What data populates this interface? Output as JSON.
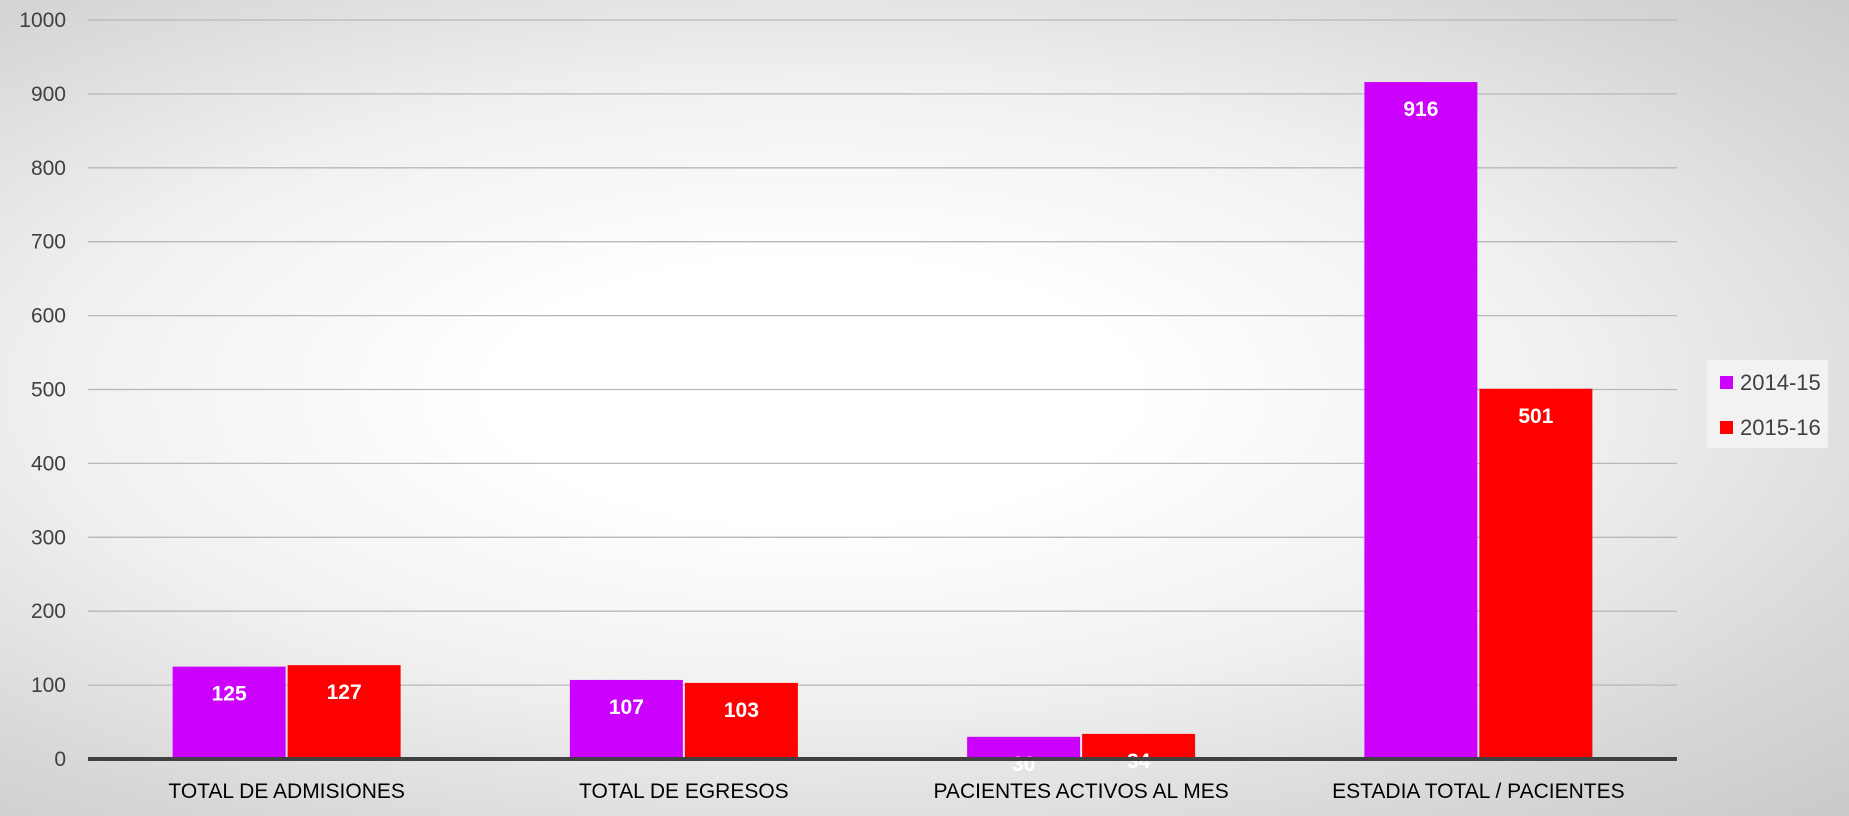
{
  "chart_data": {
    "type": "bar",
    "title": "",
    "xlabel": "",
    "ylabel": "",
    "ylim": [
      0,
      1000
    ],
    "yticks": [
      0,
      100,
      200,
      300,
      400,
      500,
      600,
      700,
      800,
      900,
      1000
    ],
    "grid": true,
    "legend_position": "right",
    "categories": [
      "TOTAL DE ADMISIONES",
      "TOTAL DE EGRESOS",
      "PACIENTES ACTIVOS AL MES",
      "ESTADIA TOTAL / PACIENTES"
    ],
    "series": [
      {
        "name": "2014-15",
        "color": "#cc00ff",
        "values": [
          125,
          107,
          30,
          916
        ]
      },
      {
        "name": "2015-16",
        "color": "#ff0000",
        "values": [
          127,
          103,
          34,
          501
        ]
      }
    ]
  }
}
